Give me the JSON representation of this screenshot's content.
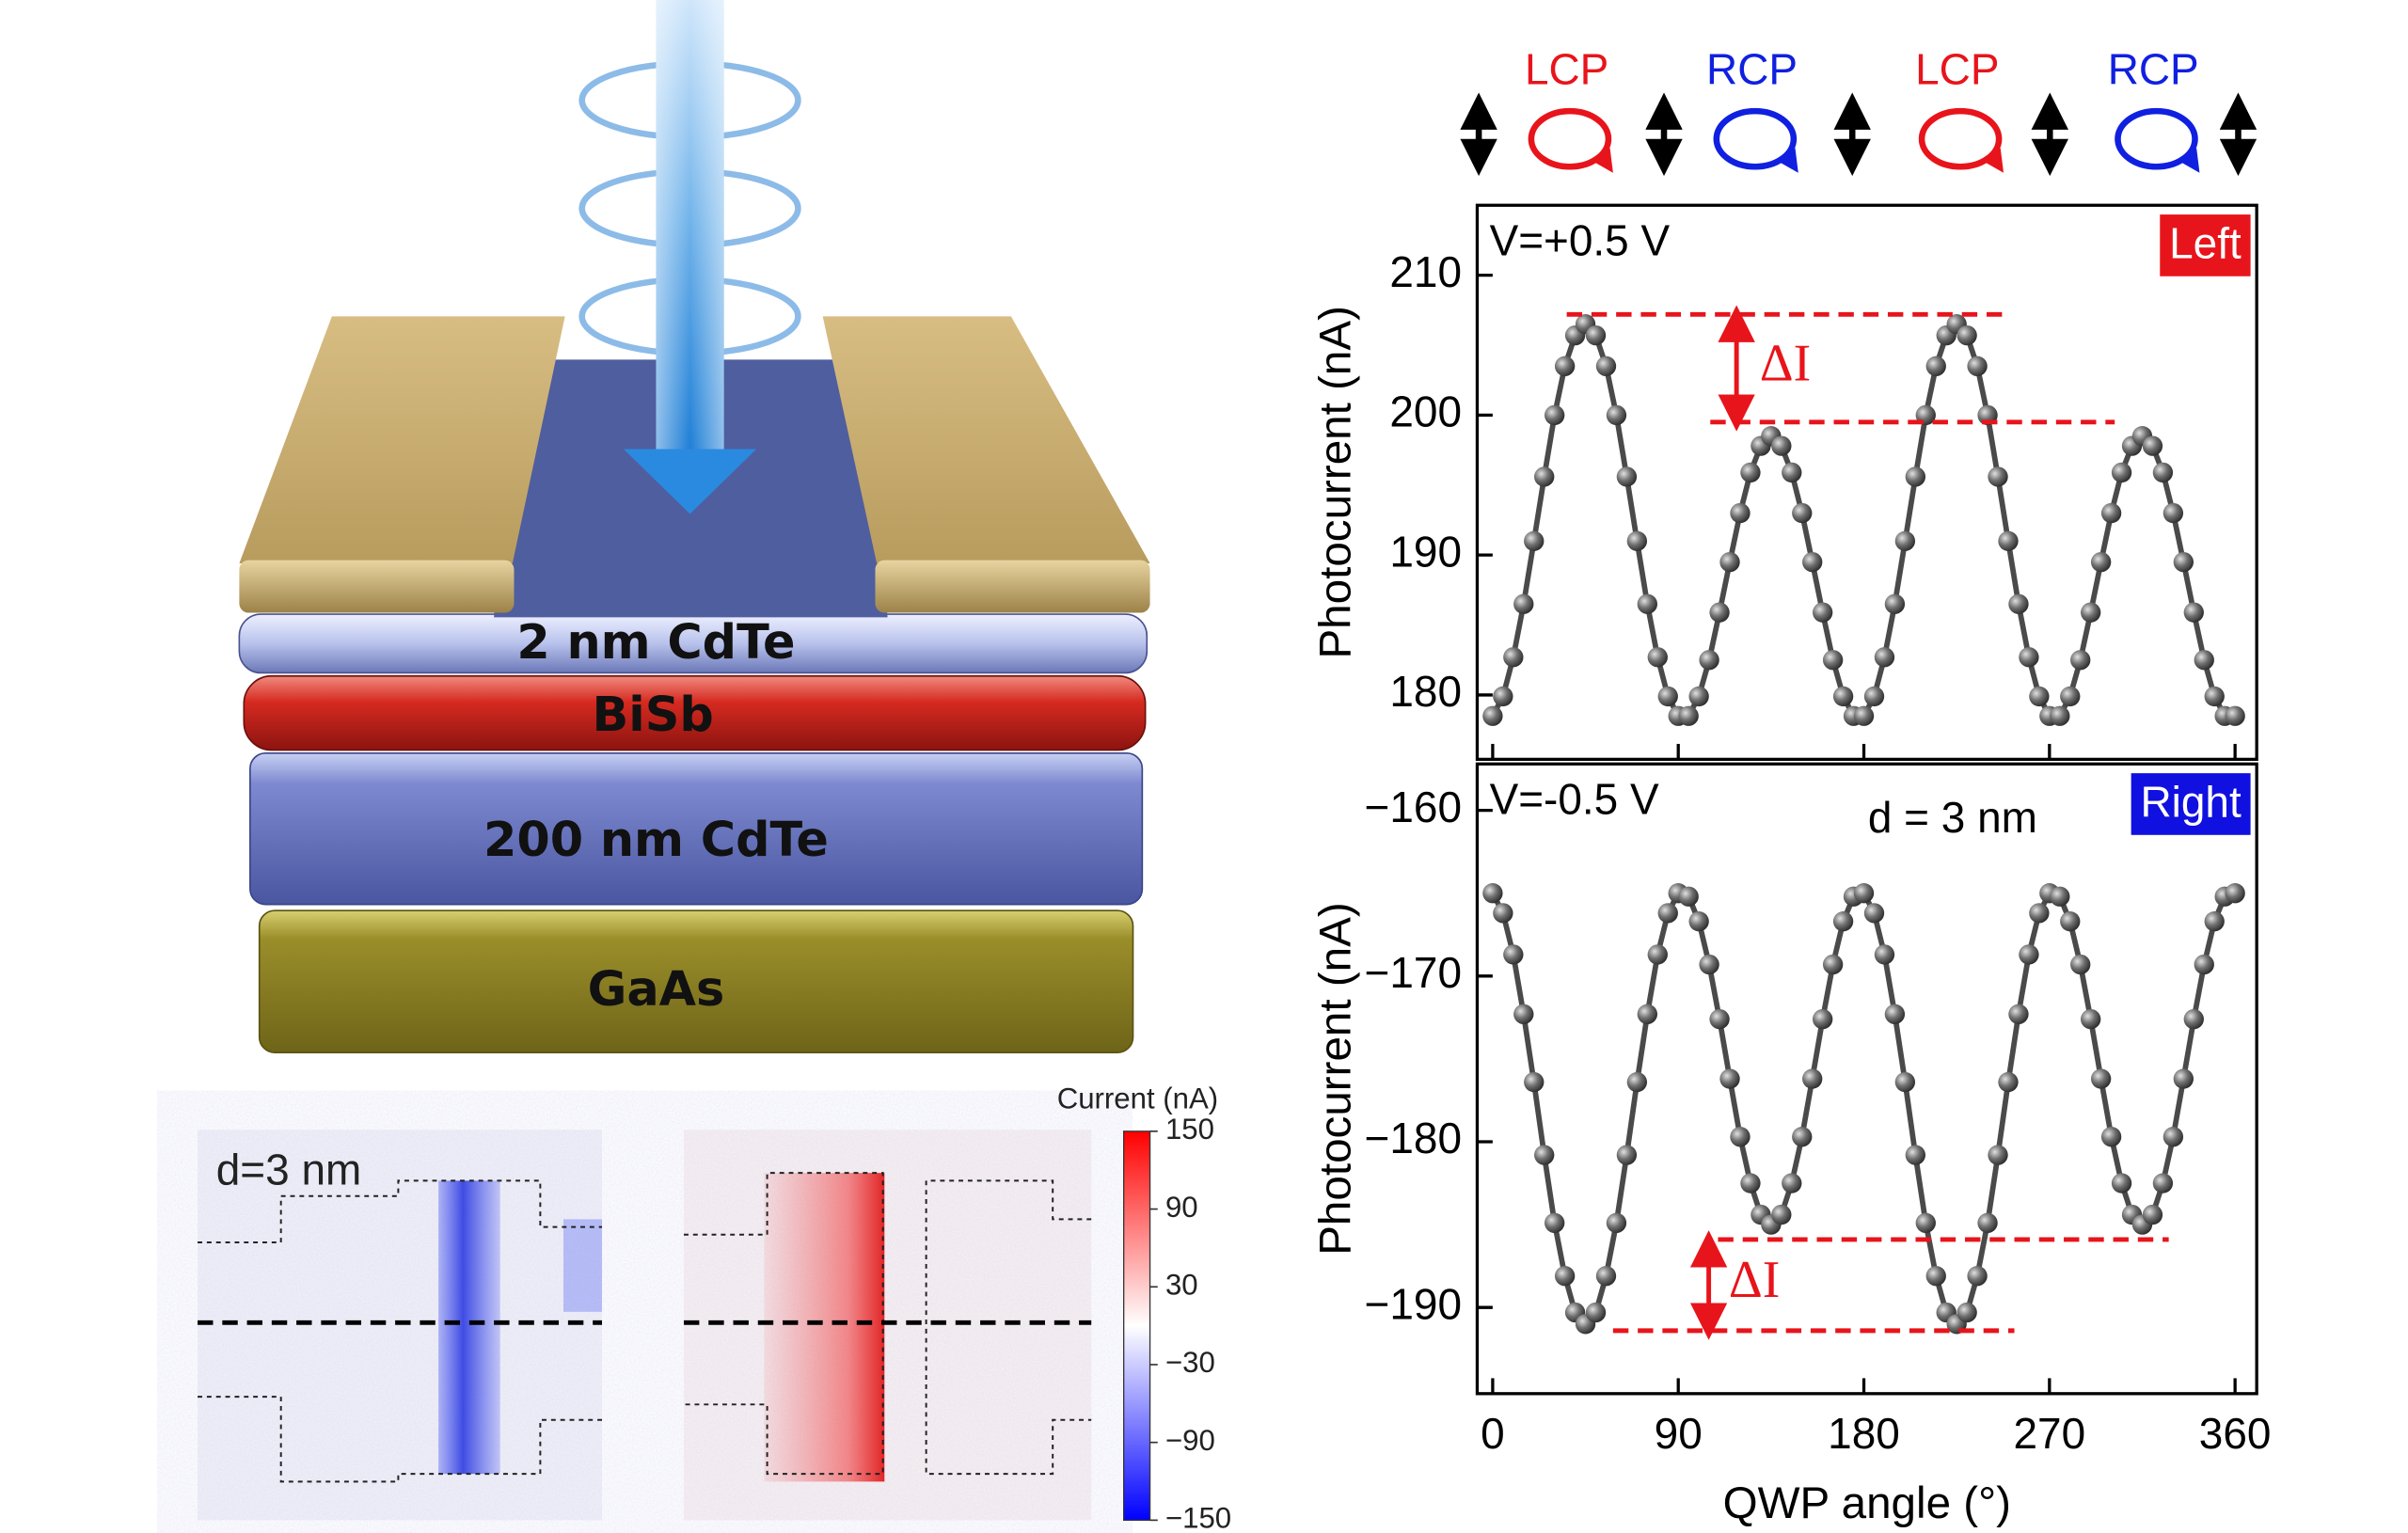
{
  "polarization": [
    {
      "text": "LCP",
      "color": "#e8141b"
    },
    {
      "text": "RCP",
      "color": "#1020e0"
    },
    {
      "text": "LCP",
      "color": "#e8141b"
    },
    {
      "text": "RCP",
      "color": "#1020e0"
    }
  ],
  "schematic": {
    "layers": [
      "2 nm CdTe",
      "BiSb",
      "200 nm CdTe",
      "GaAs"
    ]
  },
  "maps": {
    "label": "d=3 nm",
    "colorbar": {
      "title": "Current (nA)",
      "lim": [
        -150,
        150
      ],
      "ticks": [
        150,
        90,
        30,
        {
          "value": -30,
          "label": "−30"
        },
        {
          "value": -90,
          "label": "−90"
        },
        {
          "value": -150,
          "label": "−150"
        }
      ]
    }
  },
  "chart_data": [
    {
      "type": "line",
      "label": "V=+0.5 V",
      "tag": "Left",
      "tag_color": "#e8141b",
      "y_label": "Photocurrent (nA)",
      "delta_label": "ΔI",
      "delta_levels": [
        207.2,
        199.5
      ],
      "x": [
        0,
        5,
        10,
        15,
        20,
        25,
        30,
        35,
        40,
        45,
        50,
        55,
        60,
        65,
        70,
        75,
        80,
        85,
        90,
        95,
        100,
        105,
        110,
        115,
        120,
        125,
        130,
        135,
        140,
        145,
        150,
        155,
        160,
        165,
        170,
        175,
        180,
        185,
        190,
        195,
        200,
        205,
        210,
        215,
        220,
        225,
        230,
        235,
        240,
        245,
        250,
        255,
        260,
        265,
        270,
        275,
        280,
        285,
        290,
        295,
        300,
        305,
        310,
        315,
        320,
        325,
        330,
        335,
        340,
        345,
        350,
        355,
        360
      ],
      "series": [
        {
          "color": "#4a4a4a",
          "values": [
            178.5,
            179.9,
            182.7,
            186.5,
            191.0,
            195.6,
            200.0,
            203.5,
            205.7,
            206.5,
            205.7,
            203.5,
            200.0,
            195.6,
            191.0,
            186.5,
            182.7,
            179.9,
            178.5,
            178.5,
            179.9,
            182.5,
            185.9,
            189.5,
            193.0,
            195.9,
            197.8,
            198.5,
            197.8,
            195.9,
            193.0,
            189.5,
            185.9,
            182.5,
            179.9,
            178.5,
            178.5,
            179.9,
            182.7,
            186.5,
            191.0,
            195.6,
            200.0,
            203.5,
            205.7,
            206.5,
            205.7,
            203.5,
            200.0,
            195.6,
            191.0,
            186.5,
            182.7,
            179.9,
            178.5,
            178.5,
            179.9,
            182.5,
            185.9,
            189.5,
            193.0,
            195.9,
            197.8,
            198.5,
            197.8,
            195.9,
            193.0,
            189.5,
            185.9,
            182.5,
            179.9,
            178.5,
            178.5
          ]
        }
      ],
      "xlim": [
        -7.5,
        370.5
      ],
      "xticks": [
        0,
        90,
        180,
        270,
        360
      ],
      "ylim": [
        175.4,
        215
      ],
      "yticks": [
        180,
        190,
        200,
        210
      ]
    },
    {
      "type": "line",
      "label": "V=-0.5 V",
      "note": "d = 3 nm",
      "tag": "Right",
      "tag_color": "#1010e0",
      "y_label": "Photocurrent (nA)",
      "x_label": "QWP angle (°)",
      "delta_label": "ΔI",
      "delta_levels": [
        -185.9,
        -191.4
      ],
      "x": [
        0,
        5,
        10,
        15,
        20,
        25,
        30,
        35,
        40,
        45,
        50,
        55,
        60,
        65,
        70,
        75,
        80,
        85,
        90,
        95,
        100,
        105,
        110,
        115,
        120,
        125,
        130,
        135,
        140,
        145,
        150,
        155,
        160,
        165,
        170,
        175,
        180,
        185,
        190,
        195,
        200,
        205,
        210,
        215,
        220,
        225,
        230,
        235,
        240,
        245,
        250,
        255,
        260,
        265,
        270,
        275,
        280,
        285,
        290,
        295,
        300,
        305,
        310,
        315,
        320,
        325,
        330,
        335,
        340,
        345,
        350,
        355,
        360
      ],
      "series": [
        {
          "color": "#4a4a4a",
          "values": [
            -165.0,
            -166.2,
            -168.7,
            -172.3,
            -176.4,
            -180.8,
            -184.9,
            -188.1,
            -190.3,
            -191.0,
            -190.3,
            -188.1,
            -184.9,
            -180.8,
            -176.4,
            -172.3,
            -168.7,
            -166.2,
            -165.0,
            -165.2,
            -166.7,
            -169.3,
            -172.6,
            -176.2,
            -179.7,
            -182.5,
            -184.4,
            -185.0,
            -184.4,
            -182.5,
            -179.7,
            -176.2,
            -172.6,
            -169.3,
            -166.7,
            -165.2,
            -165.0,
            -166.2,
            -168.7,
            -172.3,
            -176.4,
            -180.8,
            -184.9,
            -188.1,
            -190.3,
            -191.0,
            -190.3,
            -188.1,
            -184.9,
            -180.8,
            -176.4,
            -172.3,
            -168.7,
            -166.2,
            -165.0,
            -165.2,
            -166.7,
            -169.3,
            -172.6,
            -176.2,
            -179.7,
            -182.5,
            -184.4,
            -185.0,
            -184.4,
            -182.5,
            -179.7,
            -176.2,
            -172.6,
            -169.3,
            -166.7,
            -165.2,
            -165.0
          ]
        }
      ],
      "xlim": [
        -7.5,
        370.5
      ],
      "xticks": [
        0,
        90,
        180,
        270,
        360
      ],
      "ylim": [
        -195.2,
        -157.2
      ],
      "yticks": [
        {
          "value": -160,
          "label": "−160"
        },
        {
          "value": -170,
          "label": "−170"
        },
        {
          "value": -180,
          "label": "−180"
        },
        {
          "value": -190,
          "label": "−190"
        }
      ]
    }
  ]
}
